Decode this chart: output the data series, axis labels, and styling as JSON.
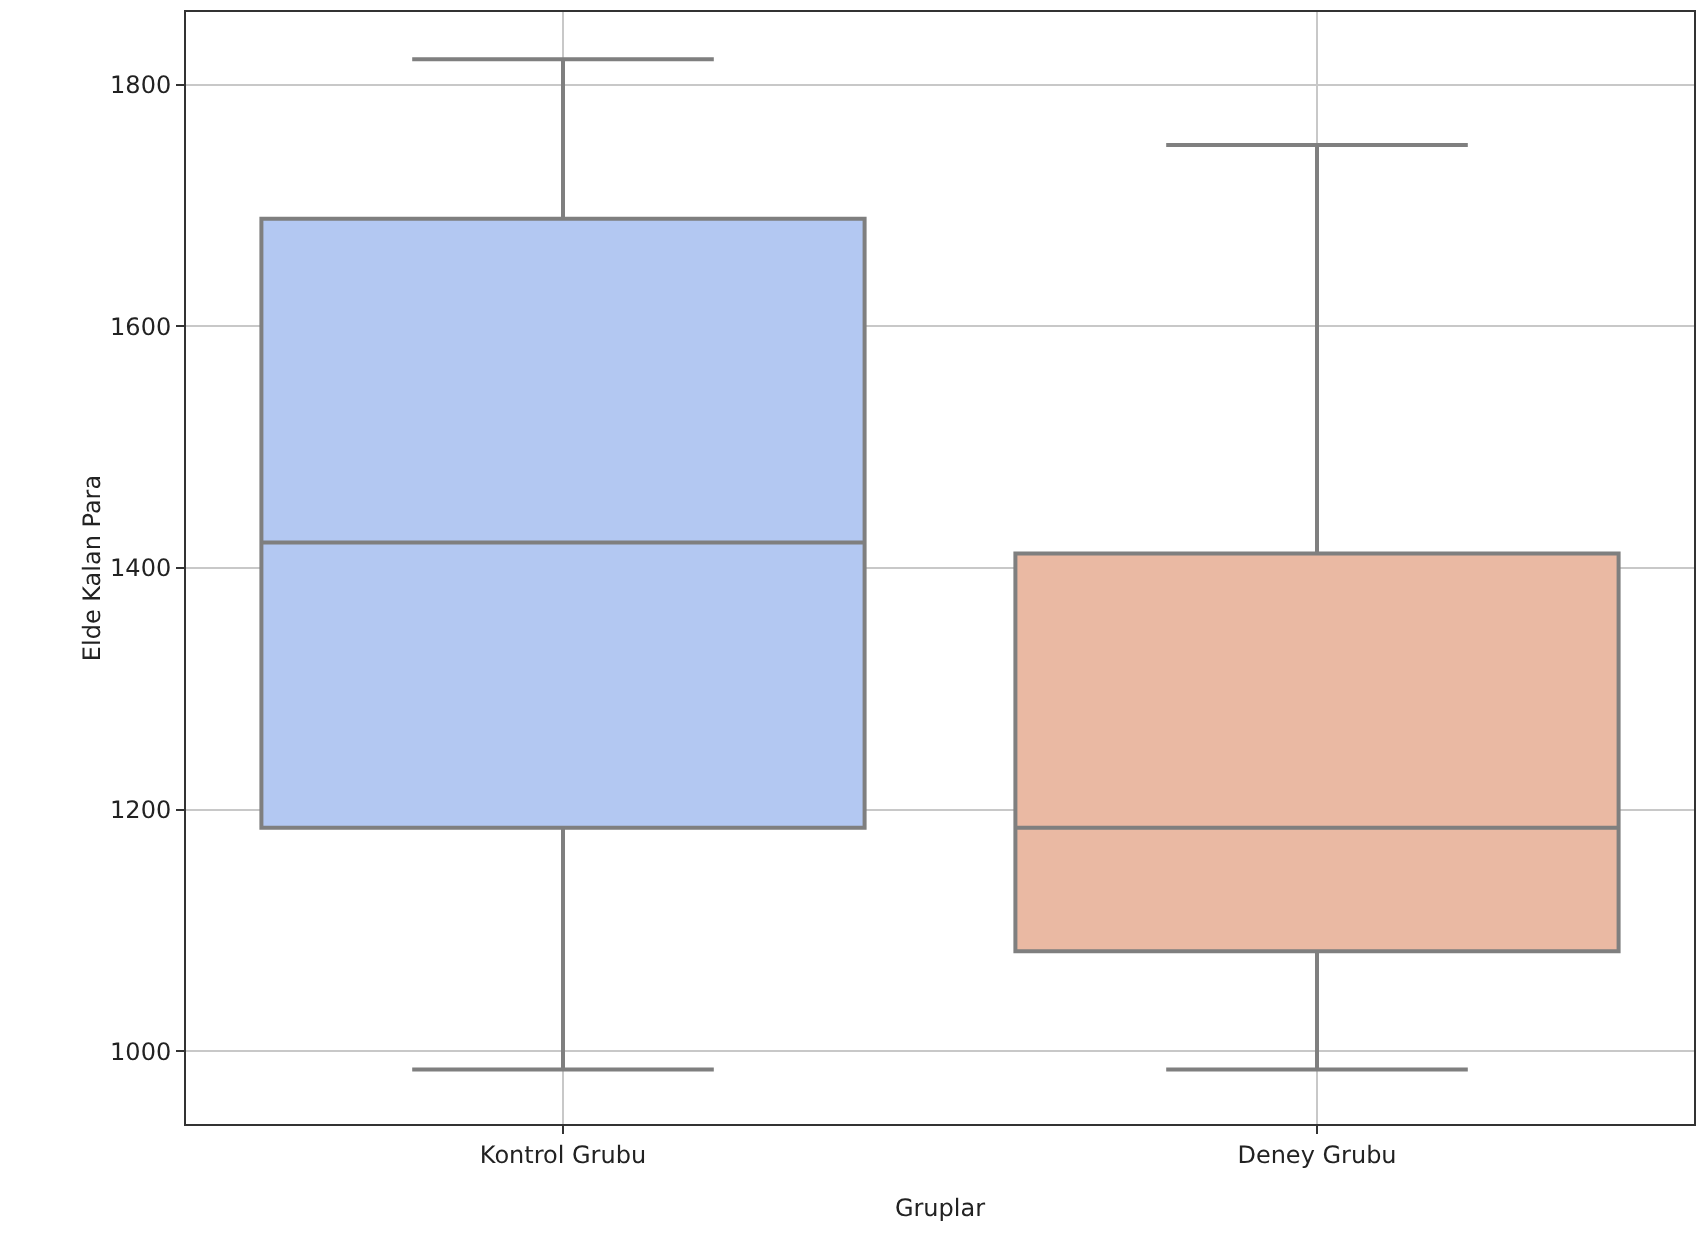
{
  "chart_data": {
    "type": "box",
    "xlabel": "Gruplar",
    "ylabel": "Elde Kalan Para",
    "categories": [
      "Kontrol Grubu",
      "Deney Grubu"
    ],
    "boxes": [
      {
        "low": 985,
        "q1": 1185,
        "median": 1421,
        "q3": 1689,
        "high": 1821
      },
      {
        "low": 985,
        "q1": 1083,
        "median": 1185,
        "q3": 1412,
        "high": 1750
      }
    ],
    "colors": [
      "#b3c8f2",
      "#eab9a3"
    ],
    "ylim": [
      940,
      1860
    ],
    "yticks": [
      1000,
      1200,
      1400,
      1600,
      1800
    ],
    "grid": true,
    "legend": false
  }
}
